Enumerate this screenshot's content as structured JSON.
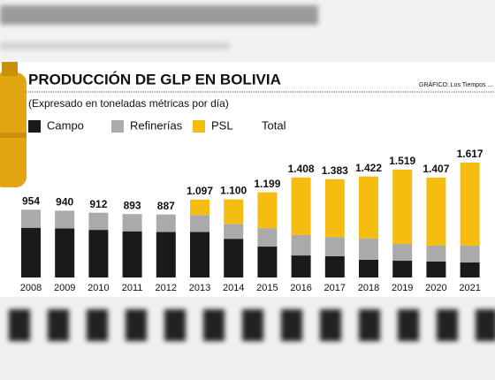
{
  "chart_data": {
    "type": "stacked_bar",
    "title": "PRODUCCIÓN DE GLP EN BOLIVIA",
    "subtitle": "(Expresado en toneladas métricas por día)",
    "source": "GRÁFICO: Los Tiempos ...",
    "categories": [
      "2008",
      "2009",
      "2010",
      "2011",
      "2012",
      "2013",
      "2014",
      "2015",
      "2016",
      "2017",
      "2018",
      "2019",
      "2020",
      "2021"
    ],
    "series": [
      {
        "name": "Campo",
        "color": "#1a1a1a",
        "values": [
          700,
          690,
          670,
          650,
          640,
          640,
          545,
          435,
          310,
          300,
          250,
          236,
          224,
          211
        ]
      },
      {
        "name": "Refinerías",
        "color": "#aaaaaa",
        "values": [
          254,
          250,
          242,
          243,
          247,
          240,
          210,
          260,
          290,
          270,
          300,
          236,
          224,
          236
        ]
      },
      {
        "name": "PSL",
        "color": "#f5bd0f",
        "values": [
          0,
          0,
          0,
          0,
          0,
          217,
          345,
          504,
          808,
          813,
          872,
          1047,
          959,
          1170
        ]
      }
    ],
    "total": {
      "name": "Total",
      "values": [
        954,
        940,
        912,
        893,
        887,
        1097,
        1100,
        1199,
        1408,
        1383,
        1422,
        1519,
        1407,
        1617
      ],
      "value_labels": [
        "954",
        "940",
        "912",
        "893",
        "887",
        "1.097",
        "1.100",
        "1.199",
        "1.408",
        "1.383",
        "1.422",
        "1.519",
        "1.407",
        "1.617"
      ]
    },
    "ylim": [
      0,
      1800
    ]
  }
}
